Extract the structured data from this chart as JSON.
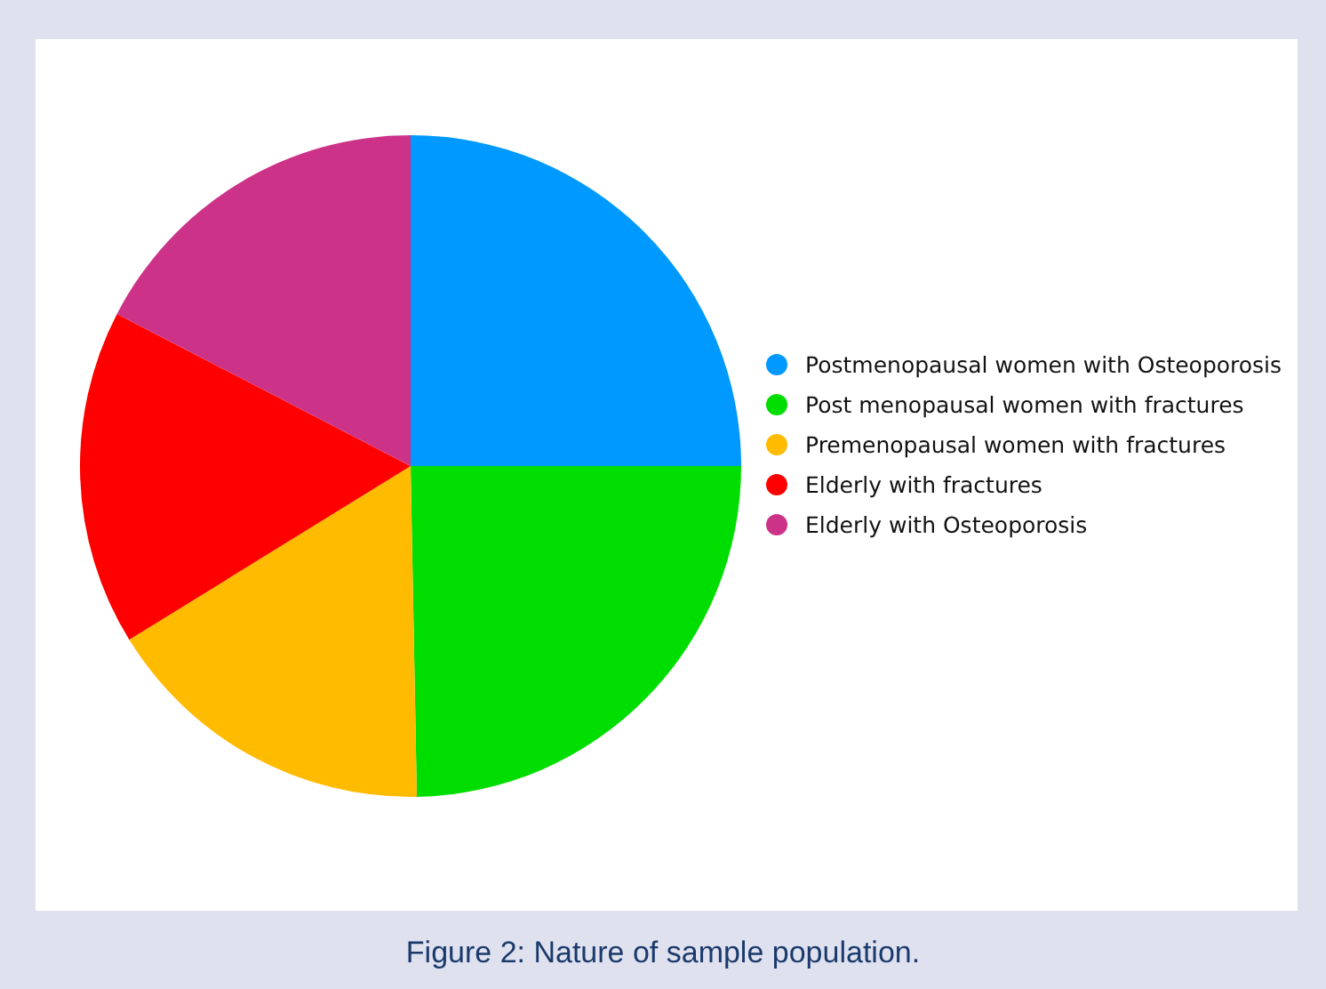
{
  "chart_data": {
    "type": "pie",
    "title": "Figure 2: Nature of sample population.",
    "categories": [
      "Postmenopausal women with Osteoporosis",
      "Post menopausal women with fractures",
      "Premenopausal women with fractures",
      "Elderly with fractures",
      "Elderly with Osteoporosis"
    ],
    "values": [
      25,
      24.7,
      16.5,
      16.4,
      17.4
    ],
    "colors": [
      "#0099ff",
      "#00dd00",
      "#ffbb00",
      "#ff0000",
      "#cc3388"
    ],
    "legend": "right"
  }
}
